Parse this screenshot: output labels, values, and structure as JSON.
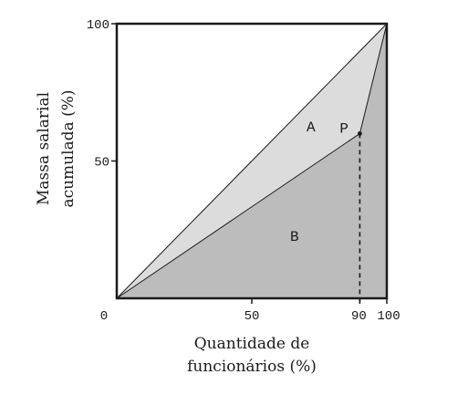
{
  "chart_data": {
    "type": "area",
    "xlabel_lines": [
      "Quantidade de",
      "funcionários (%)"
    ],
    "ylabel_lines": [
      "Massa salarial",
      "acumulada (%)"
    ],
    "xlim": [
      0,
      100
    ],
    "ylim": [
      0,
      100
    ],
    "x_ticks": [
      {
        "value": 50,
        "label": "50"
      },
      {
        "value": 90,
        "label": "90"
      },
      {
        "value": 100,
        "label": "100"
      }
    ],
    "y_ticks": [
      {
        "value": 50,
        "label": "50"
      },
      {
        "value": 100,
        "label": "100"
      }
    ],
    "origin_label": "0",
    "equality_line": [
      [
        0,
        0
      ],
      [
        100,
        100
      ]
    ],
    "lorenz_curve": [
      [
        0,
        0
      ],
      [
        90,
        60
      ],
      [
        100,
        100
      ]
    ],
    "point": {
      "label": "P",
      "x": 90,
      "y": 60
    },
    "region_labels": {
      "between_curves": "A",
      "under_curve": "B"
    },
    "colors": {
      "region_a": "#dcdcdc",
      "region_b": "#bcbcbc",
      "axis": "#1a1a1a"
    }
  }
}
